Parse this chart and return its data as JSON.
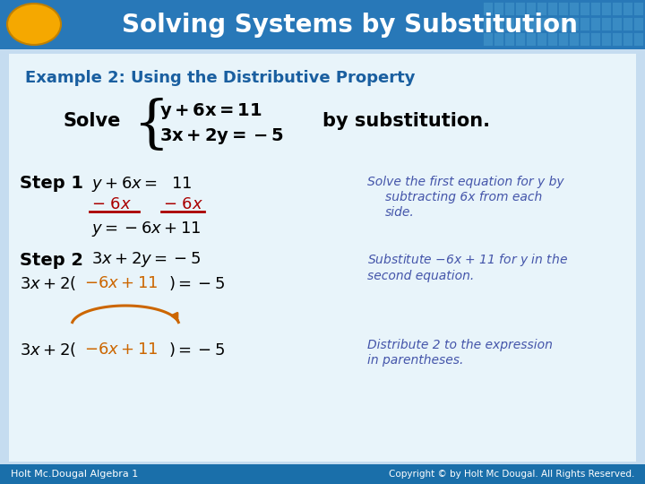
{
  "title": "Solving Systems by Substitution",
  "title_bg_left": "#1A6FAA",
  "title_bg_right": "#4AADCF",
  "title_color": "#FFFFFF",
  "oval_color": "#F5A800",
  "example_heading": "Example 2: Using the Distributive Property",
  "example_heading_color": "#1A5FA0",
  "body_bg": "#C8DFF0",
  "inner_bg": "#DDEEF8",
  "footer_left": "Holt Mc.Dougal Algebra 1",
  "footer_right": "Copyright © by Holt Mc Dougal. All Rights Reserved.",
  "footer_bg": "#1A6FAA",
  "footer_color": "#FFFFFF",
  "black": "#000000",
  "red": "#AA0000",
  "blue_note": "#4455AA",
  "orange": "#CC6600"
}
